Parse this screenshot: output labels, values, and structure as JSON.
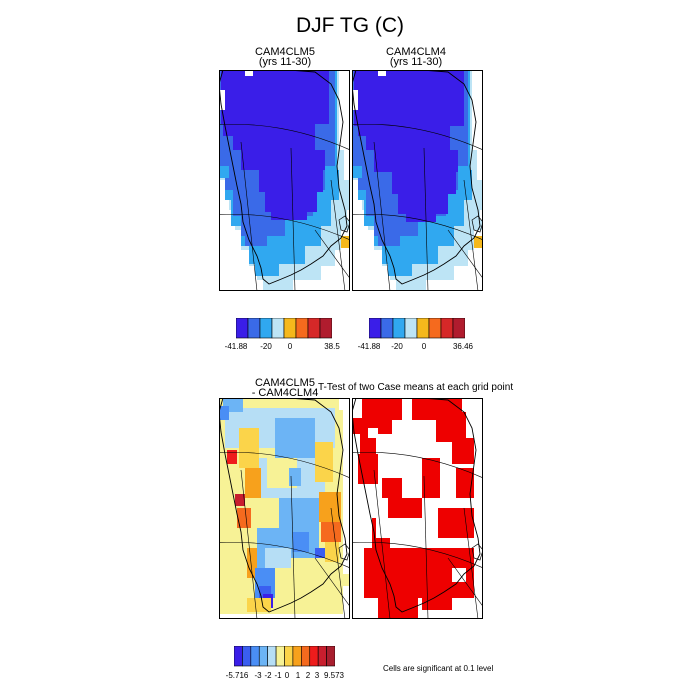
{
  "title": "DJF TG (C)",
  "panels": {
    "top_left": {
      "title_line1": "CAM4CLM5",
      "title_line2": "(yrs 11-30)"
    },
    "top_right": {
      "title_line1": "CAM4CLM4",
      "title_line2": "(yrs 11-30)"
    },
    "bottom_left": {
      "title_line1": "CAM4CLM5",
      "title_line2": "- CAM4CLM4"
    },
    "bottom_right": {
      "title": "T-Test of two Case means at each grid point"
    }
  },
  "colorbars": {
    "top_left": {
      "colors": [
        "#3a1ee8",
        "#3a6ae8",
        "#30a8f0",
        "#bde4f5",
        "#f5b81c",
        "#f56a1e",
        "#d62828",
        "#b01c2e"
      ],
      "labels": [
        "-41.88",
        "-20",
        "0",
        "38.5"
      ]
    },
    "top_right": {
      "colors": [
        "#3a1ee8",
        "#3a6ae8",
        "#30a8f0",
        "#bde4f5",
        "#f5b81c",
        "#f56a1e",
        "#d62828",
        "#b01c2e"
      ],
      "labels": [
        "-41.88",
        "-20",
        "0",
        "36.46"
      ]
    },
    "diff": {
      "colors": [
        "#3a1ee8",
        "#3a5ef0",
        "#4a8ef5",
        "#6cb4f5",
        "#b6def5",
        "#f7f296",
        "#fbd44a",
        "#f7a11c",
        "#f56a1e",
        "#ee1c1c",
        "#c81e2e",
        "#a81e2e"
      ],
      "labels": [
        "-5.716",
        "-3",
        "-2",
        "-1",
        "0",
        "1",
        "2",
        "3",
        "9.573"
      ]
    }
  },
  "significance_note": "Cells are significant at 0.1 level",
  "significance_color": "#ee0000"
}
